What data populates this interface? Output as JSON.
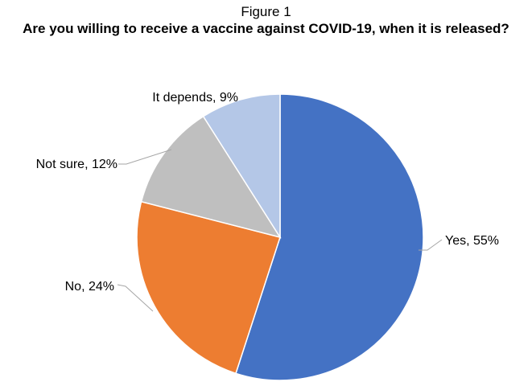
{
  "figure": {
    "label": "Figure 1"
  },
  "chart_data": {
    "type": "pie",
    "title": "Are you willing to receive a vaccine against COVID-19, when it is released?",
    "categories": [
      "Yes",
      "No",
      "Not sure",
      "It depends"
    ],
    "values": [
      55,
      24,
      12,
      9
    ],
    "data_labels": [
      "Yes, 55%",
      "No, 24%",
      "Not sure, 12%",
      "It depends, 9%"
    ],
    "colors": [
      "#4472c4",
      "#ed7d31",
      "#bfbfbf",
      "#b4c7e7"
    ],
    "start_angle": "12 o'clock",
    "direction": "clockwise",
    "legend": "none"
  }
}
